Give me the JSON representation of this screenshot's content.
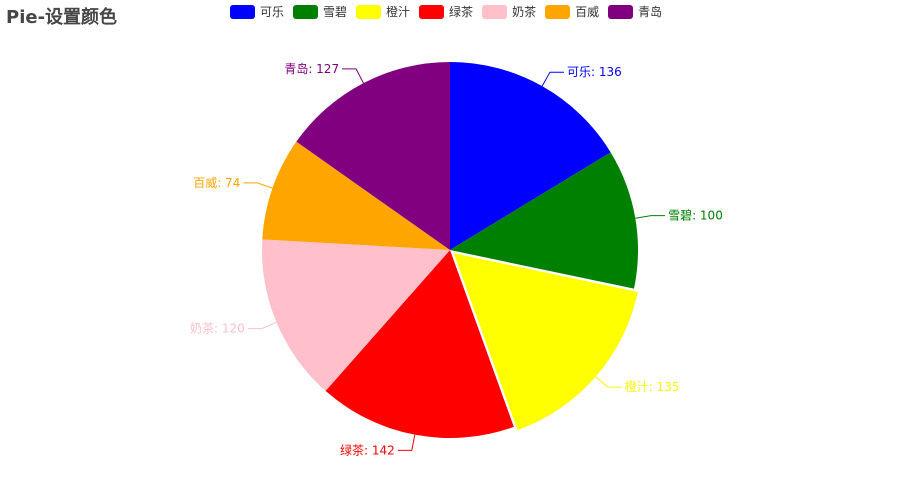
{
  "chart_data": {
    "type": "pie",
    "title": "Pie-设置颜色",
    "legend_position": "top",
    "categories": [
      "可乐",
      "雪碧",
      "橙汁",
      "绿茶",
      "奶茶",
      "百威",
      "青岛"
    ],
    "values": [
      136,
      100,
      135,
      142,
      120,
      74,
      127
    ],
    "colors": [
      "#0000ff",
      "#008000",
      "#ffff00",
      "#ff0000",
      "#ffc0cb",
      "#ffa500",
      "#800080"
    ],
    "highlighted_slice": "橙汁"
  }
}
